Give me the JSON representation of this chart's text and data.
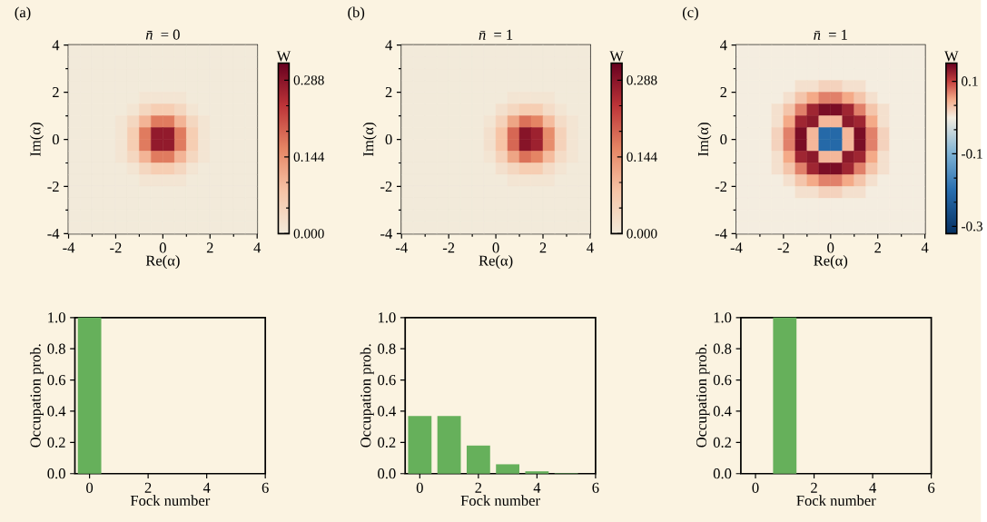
{
  "chart_data": [
    {
      "type": "heatmap",
      "title": "*n̄* = 0",
      "annotations": [
        "(a)"
      ],
      "xlabel": "Re(α)",
      "ylabel": "Im(α)",
      "clabel": "W",
      "x": [
        -3.75,
        -3.25,
        -2.75,
        -2.25,
        -1.75,
        -1.25,
        -0.75,
        -0.25,
        0.25,
        0.75,
        1.25,
        1.75,
        2.25,
        2.75,
        3.25,
        3.75
      ],
      "y": [
        3.75,
        3.25,
        2.75,
        2.25,
        1.75,
        1.25,
        0.75,
        0.25,
        -0.25,
        -0.75,
        -1.25,
        -1.75,
        -2.25,
        -2.75,
        -3.25,
        -3.75
      ],
      "cells": [
        [
          0,
          0,
          0,
          0,
          0,
          0,
          0,
          0,
          0,
          0,
          0,
          0,
          0,
          0,
          0,
          0
        ],
        [
          0,
          0,
          0,
          0,
          0,
          0,
          0,
          0,
          0,
          0,
          0,
          0,
          0,
          0,
          0,
          0
        ],
        [
          0,
          0,
          0,
          0,
          0,
          0,
          0,
          0,
          0,
          0,
          0,
          0,
          0,
          0,
          0,
          0
        ],
        [
          0,
          0,
          0,
          0,
          0,
          0,
          0,
          0,
          0,
          0,
          0,
          0,
          0,
          0,
          0,
          0
        ],
        [
          0,
          0,
          0,
          0,
          0,
          0,
          0.01,
          0.01,
          0.01,
          0.01,
          0,
          0,
          0,
          0,
          0,
          0
        ],
        [
          0,
          0,
          0,
          0,
          0,
          0.01,
          0.04,
          0.06,
          0.06,
          0.04,
          0.01,
          0,
          0,
          0,
          0,
          0
        ],
        [
          0,
          0,
          0,
          0,
          0.01,
          0.04,
          0.1,
          0.17,
          0.17,
          0.1,
          0.04,
          0.01,
          0,
          0,
          0,
          0
        ],
        [
          0,
          0,
          0,
          0,
          0.01,
          0.06,
          0.17,
          0.28,
          0.28,
          0.17,
          0.06,
          0.01,
          0,
          0,
          0,
          0
        ],
        [
          0,
          0,
          0,
          0,
          0.01,
          0.06,
          0.17,
          0.28,
          0.28,
          0.17,
          0.06,
          0.01,
          0,
          0,
          0,
          0
        ],
        [
          0,
          0,
          0,
          0,
          0.01,
          0.04,
          0.1,
          0.17,
          0.17,
          0.1,
          0.04,
          0.01,
          0,
          0,
          0,
          0
        ],
        [
          0,
          0,
          0,
          0,
          0,
          0.01,
          0.04,
          0.06,
          0.06,
          0.04,
          0.01,
          0,
          0,
          0,
          0,
          0
        ],
        [
          0,
          0,
          0,
          0,
          0,
          0,
          0.01,
          0.01,
          0.01,
          0.01,
          0,
          0,
          0,
          0,
          0,
          0
        ],
        [
          0,
          0,
          0,
          0,
          0,
          0,
          0,
          0,
          0,
          0,
          0,
          0,
          0,
          0,
          0,
          0
        ],
        [
          0,
          0,
          0,
          0,
          0,
          0,
          0,
          0,
          0,
          0,
          0,
          0,
          0,
          0,
          0,
          0
        ],
        [
          0,
          0,
          0,
          0,
          0,
          0,
          0,
          0,
          0,
          0,
          0,
          0,
          0,
          0,
          0,
          0
        ],
        [
          0,
          0,
          0,
          0,
          0,
          0,
          0,
          0,
          0,
          0,
          0,
          0,
          0,
          0,
          0,
          0
        ]
      ],
      "xlim": [
        -4,
        4
      ],
      "ylim": [
        -4,
        4
      ],
      "xticks": [
        -4,
        -2,
        0,
        2,
        4
      ],
      "yticks": [
        -4,
        -2,
        0,
        2,
        4
      ],
      "clim": [
        0,
        0.32
      ],
      "cticks": [
        {
          "value": 0,
          "label": "0.000"
        },
        {
          "value": 0.144,
          "label": "0.144"
        },
        {
          "value": 0.288,
          "label": "0.288"
        }
      ]
    },
    {
      "type": "heatmap",
      "title": "*n̄* = 1",
      "annotations": [
        "(b)"
      ],
      "xlabel": "Re(α)",
      "ylabel": "Im(α)",
      "clabel": "W",
      "x": [
        -3.75,
        -3.25,
        -2.75,
        -2.25,
        -1.75,
        -1.25,
        -0.75,
        -0.25,
        0.25,
        0.75,
        1.25,
        1.75,
        2.25,
        2.75,
        3.25,
        3.75
      ],
      "y": [
        3.75,
        3.25,
        2.75,
        2.25,
        1.75,
        1.25,
        0.75,
        0.25,
        -0.25,
        -0.75,
        -1.25,
        -1.75,
        -2.25,
        -2.75,
        -3.25,
        -3.75
      ],
      "cells": [
        [
          0,
          0,
          0,
          0,
          0,
          0,
          0,
          0,
          0,
          0,
          0,
          0,
          0,
          0,
          0,
          0
        ],
        [
          0,
          0,
          0,
          0,
          0,
          0,
          0,
          0,
          0,
          0,
          0,
          0,
          0,
          0,
          0,
          0
        ],
        [
          0,
          0,
          0,
          0,
          0,
          0,
          0,
          0,
          0,
          0,
          0,
          0,
          0,
          0,
          0,
          0
        ],
        [
          0,
          0,
          0,
          0,
          0,
          0,
          0,
          0,
          0,
          0,
          0,
          0,
          0,
          0,
          0,
          0
        ],
        [
          0,
          0,
          0,
          0,
          0,
          0,
          0,
          0,
          0,
          0.01,
          0.01,
          0.01,
          0.01,
          0,
          0,
          0
        ],
        [
          0,
          0,
          0,
          0,
          0,
          0,
          0,
          0,
          0.02,
          0.04,
          0.06,
          0.06,
          0.03,
          0.01,
          0,
          0
        ],
        [
          0,
          0,
          0,
          0,
          0,
          0,
          0,
          0.01,
          0.05,
          0.12,
          0.18,
          0.16,
          0.09,
          0.03,
          0.01,
          0
        ],
        [
          0,
          0,
          0,
          0,
          0,
          0,
          0,
          0.02,
          0.08,
          0.19,
          0.29,
          0.27,
          0.15,
          0.05,
          0.01,
          0
        ],
        [
          0,
          0,
          0,
          0,
          0,
          0,
          0,
          0.02,
          0.08,
          0.19,
          0.29,
          0.27,
          0.15,
          0.05,
          0.01,
          0
        ],
        [
          0,
          0,
          0,
          0,
          0,
          0,
          0,
          0.01,
          0.05,
          0.12,
          0.18,
          0.16,
          0.09,
          0.03,
          0.01,
          0
        ],
        [
          0,
          0,
          0,
          0,
          0,
          0,
          0,
          0,
          0.02,
          0.04,
          0.06,
          0.06,
          0.03,
          0.01,
          0,
          0
        ],
        [
          0,
          0,
          0,
          0,
          0,
          0,
          0,
          0,
          0,
          0.01,
          0.01,
          0.01,
          0.01,
          0,
          0,
          0
        ],
        [
          0,
          0,
          0,
          0,
          0,
          0,
          0,
          0,
          0,
          0,
          0,
          0,
          0,
          0,
          0,
          0
        ],
        [
          0,
          0,
          0,
          0,
          0,
          0,
          0,
          0,
          0,
          0,
          0,
          0,
          0,
          0,
          0,
          0
        ],
        [
          0,
          0,
          0,
          0,
          0,
          0,
          0,
          0,
          0,
          0,
          0,
          0,
          0,
          0,
          0,
          0
        ],
        [
          0,
          0,
          0,
          0,
          0,
          0,
          0,
          0,
          0,
          0,
          0,
          0,
          0,
          0,
          0,
          0
        ]
      ],
      "xlim": [
        -4,
        4
      ],
      "ylim": [
        -4,
        4
      ],
      "xticks": [
        -4,
        -2,
        0,
        2,
        4
      ],
      "yticks": [
        -4,
        -2,
        0,
        2,
        4
      ],
      "clim": [
        0,
        0.32
      ],
      "cticks": [
        {
          "value": 0,
          "label": "0.000"
        },
        {
          "value": 0.144,
          "label": "0.144"
        },
        {
          "value": 0.288,
          "label": "0.288"
        }
      ]
    },
    {
      "type": "heatmap",
      "title": "*n̄* = 1",
      "annotations": [
        "(c)"
      ],
      "xlabel": "Re(α)",
      "ylabel": "Im(α)",
      "clabel": "W",
      "x": [
        -3.75,
        -3.25,
        -2.75,
        -2.25,
        -1.75,
        -1.25,
        -0.75,
        -0.25,
        0.25,
        0.75,
        1.25,
        1.75,
        2.25,
        2.75,
        3.25,
        3.75
      ],
      "y": [
        3.75,
        3.25,
        2.75,
        2.25,
        1.75,
        1.25,
        0.75,
        0.25,
        -0.25,
        -0.75,
        -1.25,
        -1.75,
        -2.25,
        -2.75,
        -3.25,
        -3.75
      ],
      "cells": [
        [
          0,
          0,
          0,
          0,
          0,
          0,
          0,
          0,
          0,
          0,
          0,
          0,
          0,
          0,
          0,
          0
        ],
        [
          0,
          0,
          0,
          0,
          0,
          0,
          0,
          0,
          0,
          0,
          0,
          0,
          0,
          0,
          0,
          0
        ],
        [
          0,
          0,
          0,
          0,
          0,
          0,
          0,
          0,
          0,
          0,
          0,
          0,
          0,
          0,
          0,
          0
        ],
        [
          0,
          0,
          0,
          0,
          0,
          0.01,
          0.01,
          0.02,
          0.02,
          0.01,
          0.01,
          0,
          0,
          0,
          0,
          0
        ],
        [
          0,
          0,
          0,
          0,
          0.01,
          0.03,
          0.05,
          0.07,
          0.07,
          0.05,
          0.03,
          0.01,
          0,
          0,
          0,
          0
        ],
        [
          0,
          0,
          0,
          0.01,
          0.03,
          0.07,
          0.12,
          0.14,
          0.14,
          0.12,
          0.07,
          0.03,
          0.01,
          0,
          0,
          0
        ],
        [
          0,
          0,
          0,
          0.01,
          0.05,
          0.12,
          0.13,
          0.04,
          0.04,
          0.13,
          0.12,
          0.05,
          0.01,
          0,
          0,
          0
        ],
        [
          0,
          0,
          0,
          0.02,
          0.07,
          0.14,
          0.04,
          -0.21,
          -0.21,
          0.04,
          0.14,
          0.07,
          0.02,
          0,
          0,
          0
        ],
        [
          0,
          0,
          0,
          0.02,
          0.07,
          0.14,
          0.04,
          -0.21,
          -0.21,
          0.04,
          0.14,
          0.07,
          0.02,
          0,
          0,
          0
        ],
        [
          0,
          0,
          0,
          0.01,
          0.05,
          0.12,
          0.13,
          0.04,
          0.04,
          0.13,
          0.12,
          0.05,
          0.01,
          0,
          0,
          0
        ],
        [
          0,
          0,
          0,
          0.01,
          0.03,
          0.07,
          0.12,
          0.14,
          0.14,
          0.12,
          0.07,
          0.03,
          0.01,
          0,
          0,
          0
        ],
        [
          0,
          0,
          0,
          0,
          0.01,
          0.03,
          0.05,
          0.07,
          0.07,
          0.05,
          0.03,
          0.01,
          0,
          0,
          0,
          0
        ],
        [
          0,
          0,
          0,
          0,
          0,
          0.01,
          0.01,
          0.02,
          0.02,
          0.01,
          0.01,
          0,
          0,
          0,
          0,
          0
        ],
        [
          0,
          0,
          0,
          0,
          0,
          0,
          0,
          0,
          0,
          0,
          0,
          0,
          0,
          0,
          0,
          0
        ],
        [
          0,
          0,
          0,
          0,
          0,
          0,
          0,
          0,
          0,
          0,
          0,
          0,
          0,
          0,
          0,
          0
        ],
        [
          0,
          0,
          0,
          0,
          0,
          0,
          0,
          0,
          0,
          0,
          0,
          0,
          0,
          0,
          0,
          0
        ]
      ],
      "xlim": [
        -4,
        4
      ],
      "ylim": [
        -4,
        4
      ],
      "xticks": [
        -4,
        -2,
        0,
        2,
        4
      ],
      "yticks": [
        -4,
        -2,
        0,
        2,
        4
      ],
      "clim": [
        -0.32,
        0.15
      ],
      "cticks": [
        -0.3,
        -0.1,
        0.1
      ]
    },
    {
      "type": "bar",
      "xlabel": "Fock number",
      "ylabel": "Occupation prob.",
      "x": [
        0,
        1,
        2,
        3,
        4,
        5,
        6
      ],
      "values": [
        1,
        0,
        0,
        0,
        0,
        0,
        0
      ],
      "color": "#66b05b",
      "xlim": [
        -0.5,
        6
      ],
      "ylim": [
        0,
        1
      ],
      "xticks": [
        0,
        2,
        4,
        6
      ],
      "yticks": [
        {
          "value": 0,
          "label": "0.0"
        },
        {
          "value": 0.2,
          "label": "0.2"
        },
        {
          "value": 0.4,
          "label": "0.4"
        },
        {
          "value": 0.6,
          "label": "0.6"
        },
        {
          "value": 0.8,
          "label": "0.8"
        },
        {
          "value": 1,
          "label": "1.0"
        }
      ]
    },
    {
      "type": "bar",
      "xlabel": "Fock number",
      "ylabel": "Occupation prob.",
      "x": [
        0,
        1,
        2,
        3,
        4,
        5,
        6
      ],
      "values": [
        0.37,
        0.37,
        0.18,
        0.06,
        0.015,
        0.003,
        0
      ],
      "color": "#66b05b",
      "xlim": [
        -0.5,
        6
      ],
      "ylim": [
        0,
        1
      ],
      "xticks": [
        0,
        2,
        4,
        6
      ],
      "yticks": [
        {
          "value": 0,
          "label": "0.0"
        },
        {
          "value": 0.2,
          "label": "0.2"
        },
        {
          "value": 0.4,
          "label": "0.4"
        },
        {
          "value": 0.6,
          "label": "0.6"
        },
        {
          "value": 0.8,
          "label": "0.8"
        },
        {
          "value": 1,
          "label": "1.0"
        }
      ]
    },
    {
      "type": "bar",
      "xlabel": "Fock number",
      "ylabel": "Occupation prob.",
      "x": [
        0,
        1,
        2,
        3,
        4,
        5,
        6
      ],
      "values": [
        0,
        1,
        0,
        0,
        0,
        0,
        0
      ],
      "color": "#66b05b",
      "xlim": [
        -0.5,
        6
      ],
      "ylim": [
        0,
        1
      ],
      "xticks": [
        0,
        2,
        4,
        6
      ],
      "yticks": [
        {
          "value": 0,
          "label": "0.0"
        },
        {
          "value": 0.2,
          "label": "0.2"
        },
        {
          "value": 0.4,
          "label": "0.4"
        },
        {
          "value": 0.6,
          "label": "0.6"
        },
        {
          "value": 0.8,
          "label": "0.8"
        },
        {
          "value": 1,
          "label": "1.0"
        }
      ]
    }
  ]
}
